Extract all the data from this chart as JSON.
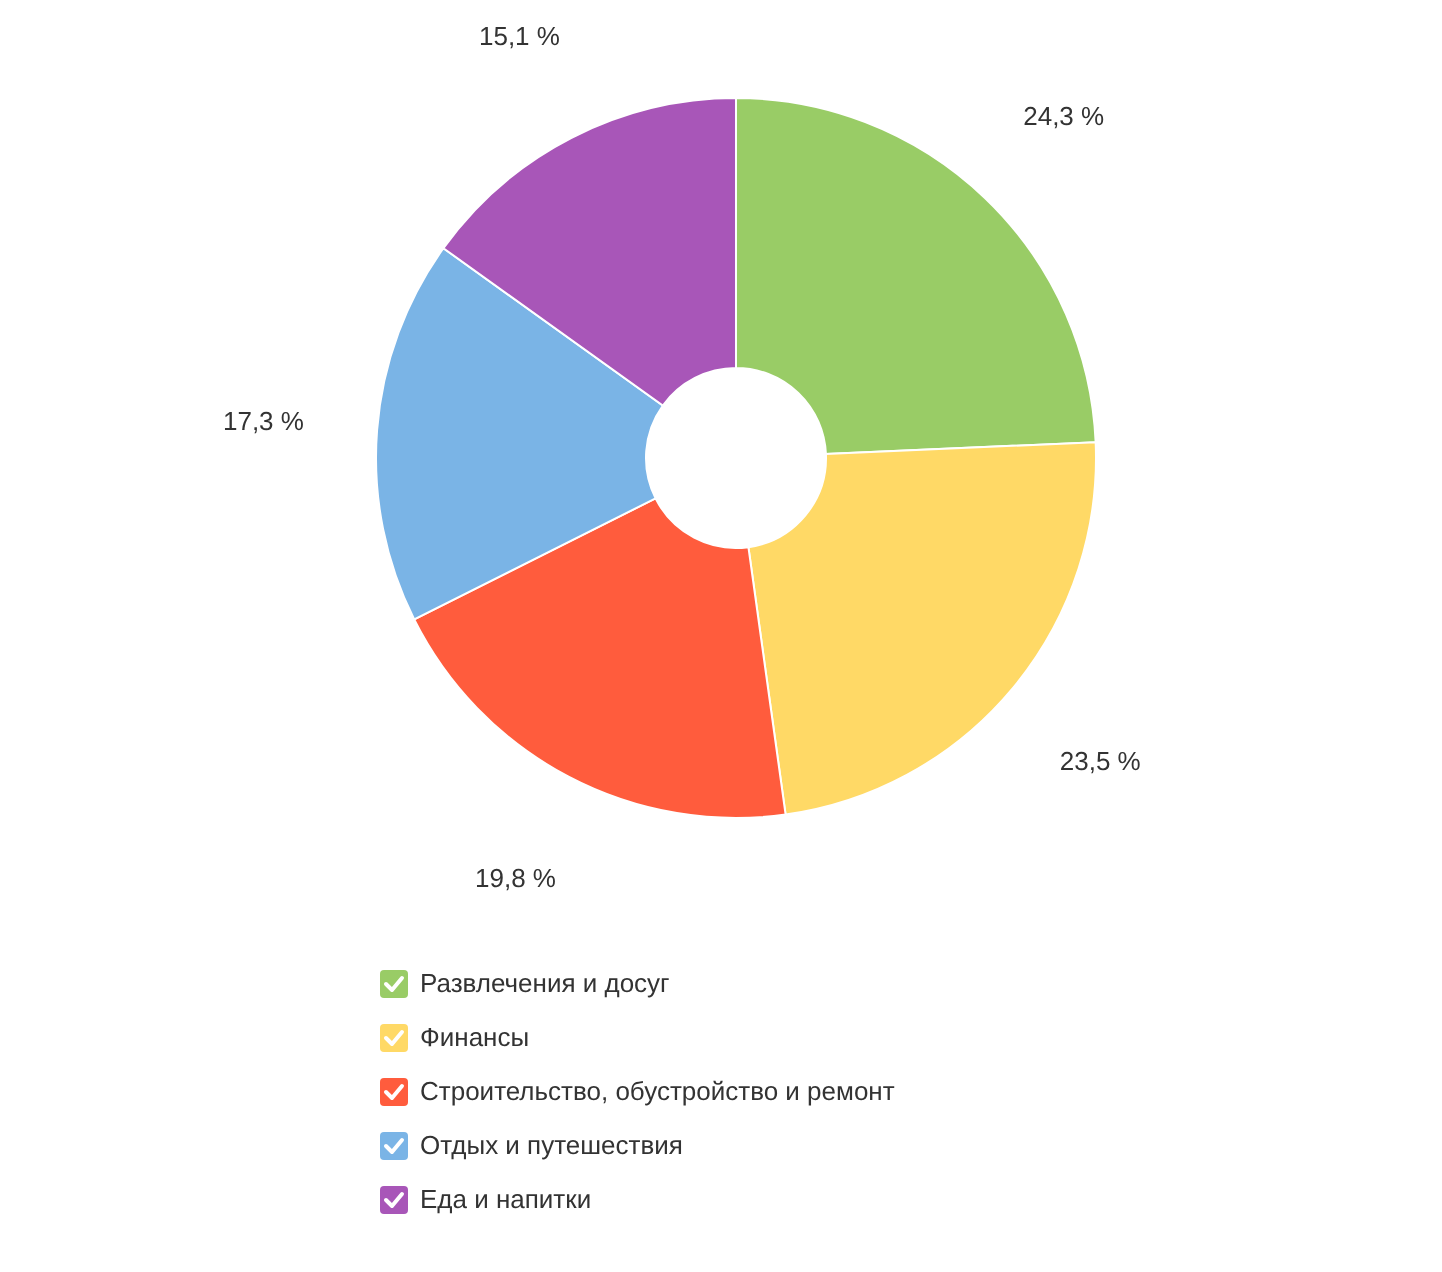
{
  "chart_data": {
    "type": "donut",
    "categories": [
      "Развлечения и досуг",
      "Финансы",
      "Строительство, обустройство и ремонт",
      "Отдых и путешествия",
      "Еда и напитки"
    ],
    "values": [
      24.3,
      23.5,
      19.8,
      17.3,
      15.1
    ],
    "value_labels": [
      "24,3 %",
      "23,5 %",
      "19,8 %",
      "17,3 %",
      "15,1 %"
    ],
    "colors": [
      "#99cc66",
      "#ffd966",
      "#ff5c3d",
      "#7ab4e6",
      "#a856b8"
    ],
    "legend": "bottom"
  }
}
